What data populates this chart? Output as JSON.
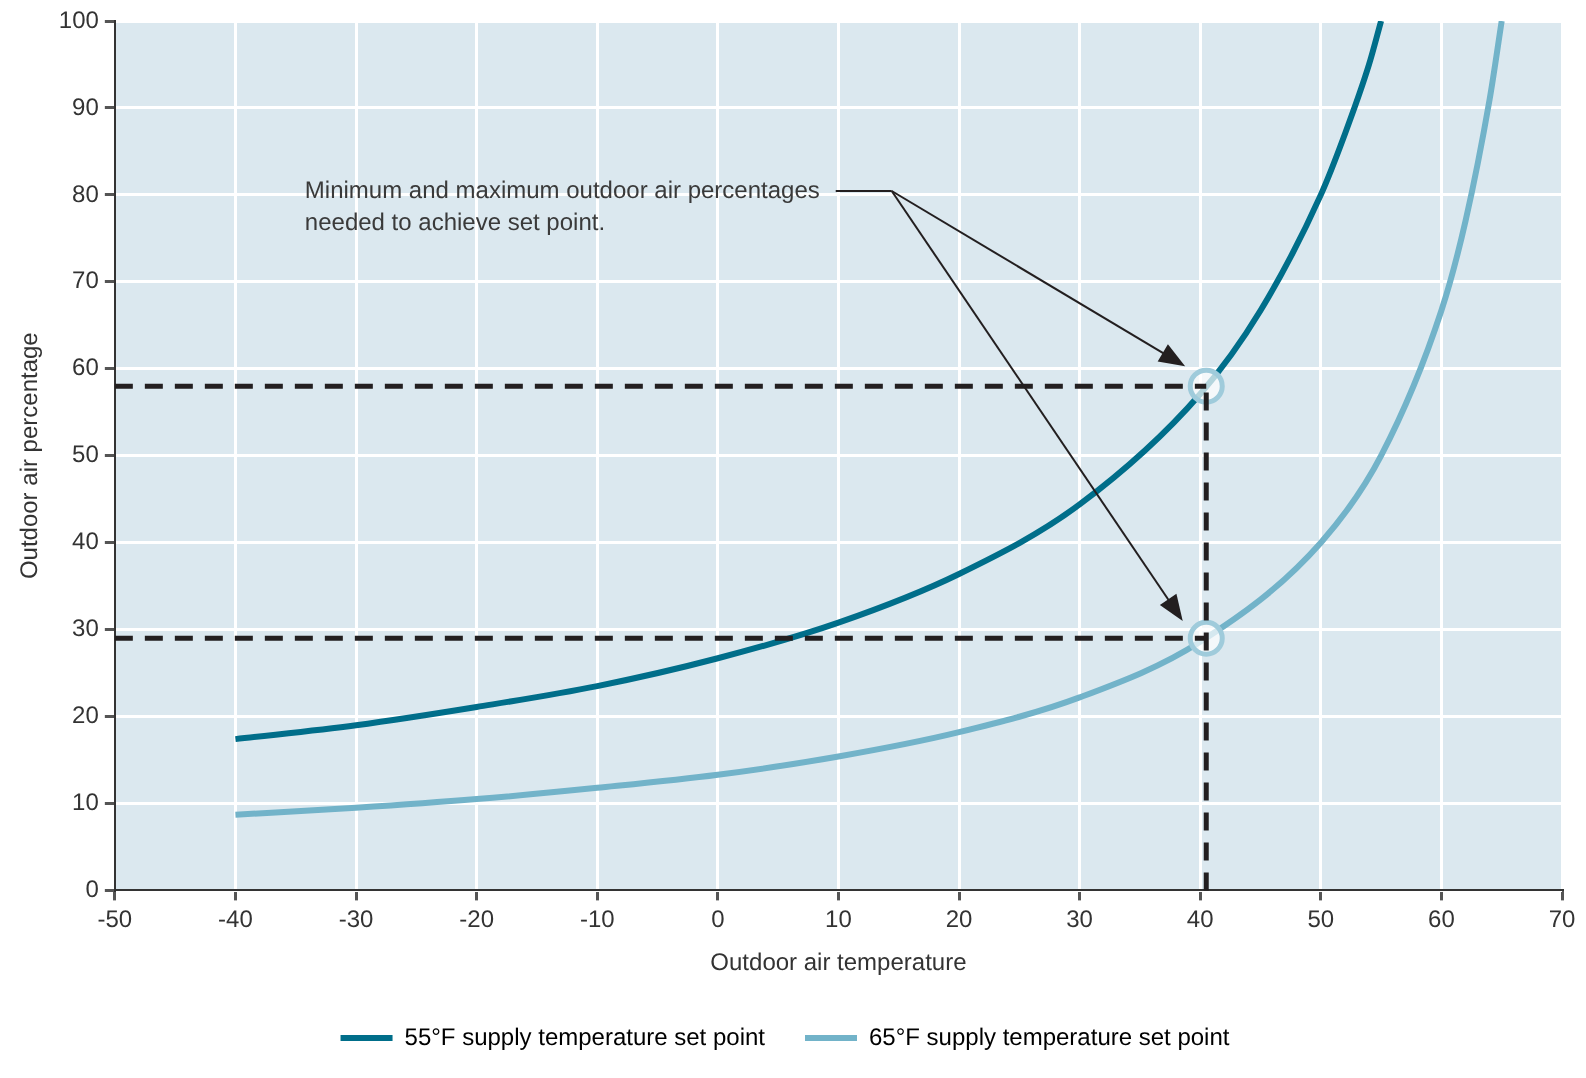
{
  "chart_data": {
    "type": "line",
    "xlabel": "Outdoor air temperature",
    "ylabel": "Outdoor air percentage",
    "xlim": [
      -50,
      70
    ],
    "xticks": [
      -50,
      -40,
      -30,
      -20,
      -10,
      0,
      10,
      20,
      30,
      40,
      50,
      60,
      70
    ],
    "ylim": [
      0,
      100
    ],
    "yticks": [
      0,
      10,
      20,
      30,
      40,
      50,
      60,
      70,
      80,
      90,
      100
    ],
    "grid": true,
    "legend": "bottom",
    "marker": "none",
    "line_style": "solid",
    "series": [
      {
        "name": "55°F supply temperature set point",
        "color": "#006e8a",
        "x": [
          -40,
          -30,
          -20,
          -10,
          0,
          10,
          20,
          30,
          40,
          45,
          50,
          52,
          54,
          55
        ],
        "values": [
          17.4,
          19,
          21.1,
          23.5,
          26.7,
          30.8,
          36.4,
          44.4,
          57.1,
          66.7,
          80,
          87,
          95,
          100
        ]
      },
      {
        "name": "65°F supply temperature set point",
        "color": "#72b3c9",
        "x": [
          -40,
          -30,
          -20,
          -10,
          0,
          10,
          20,
          30,
          40,
          50,
          55,
          60,
          62,
          64,
          65
        ],
        "values": [
          8.7,
          9.5,
          10.5,
          11.8,
          13.3,
          15.4,
          18.2,
          22.2,
          28.6,
          40,
          50,
          66.7,
          77,
          91,
          100
        ]
      },
      {
        "type": "scatter",
        "marker": "circle",
        "color": "#9fcbdb",
        "x": [
          40.5,
          40.5
        ],
        "values": [
          58,
          29
        ]
      }
    ],
    "ref_lines": [
      {
        "axis": "y",
        "value": 58,
        "color": "#231f20",
        "line_style": "dashed"
      },
      {
        "axis": "y",
        "value": 29,
        "color": "#231f20",
        "line_style": "dashed"
      },
      {
        "axis": "x",
        "value": 40.5,
        "color": "#231f20",
        "line_style": "dashed"
      }
    ],
    "annotations": [
      "Minimum and maximum outdoor air percentages\nneeded to achieve set point."
    ]
  }
}
